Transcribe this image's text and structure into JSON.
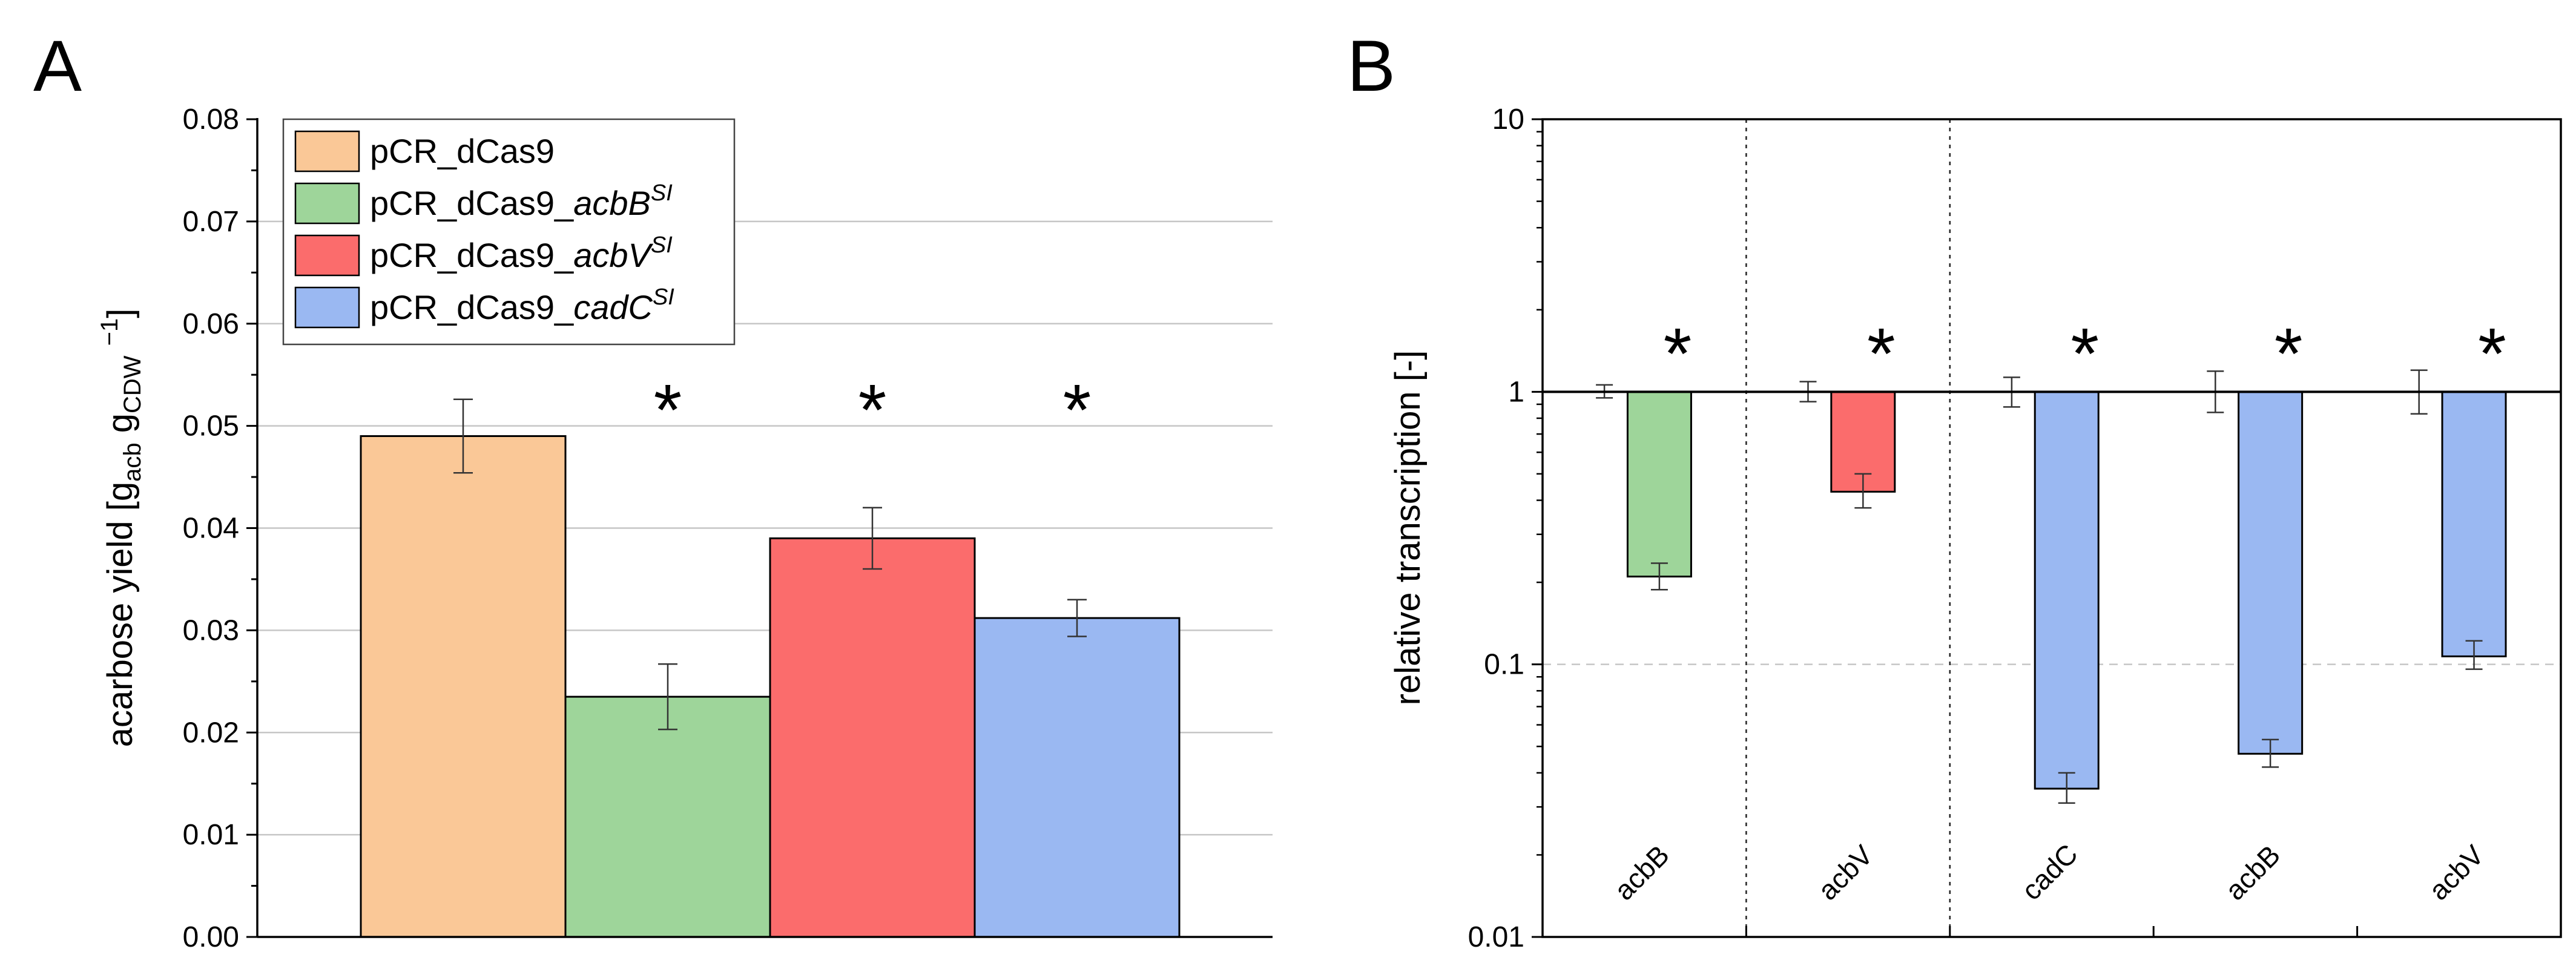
{
  "chart_data": [
    {
      "panel": "A",
      "type": "bar",
      "ylabel_parts": [
        "acarbose yield [g",
        "acb",
        " g",
        "CDW",
        " ",
        "−1",
        "]"
      ],
      "ylim": [
        0,
        0.08
      ],
      "yticks": [
        "0.00",
        "0.01",
        "0.02",
        "0.03",
        "0.04",
        "0.05",
        "0.06",
        "0.07",
        "0.08"
      ],
      "grid": "horizontal",
      "legend_position": "top-left",
      "series": [
        {
          "name_base": "pCR_dCas9",
          "name_italic": "",
          "name_sup": "",
          "value": 0.049,
          "error": 0.0036,
          "color": "#FAC897",
          "significant": false
        },
        {
          "name_base": "pCR_dCas9_",
          "name_italic": "acbB",
          "name_sup": "SI",
          "value": 0.0235,
          "error": 0.0032,
          "color": "#9ED59A",
          "significant": true
        },
        {
          "name_base": "pCR_dCas9_",
          "name_italic": "acbV",
          "name_sup": "SI",
          "value": 0.039,
          "error": 0.003,
          "color": "#FB6C6C",
          "significant": true
        },
        {
          "name_base": "pCR_dCas9_",
          "name_italic": "cadC",
          "name_sup": "SI",
          "value": 0.0312,
          "error": 0.0018,
          "color": "#9AB8F2",
          "significant": true
        }
      ],
      "significance_marker": "*"
    },
    {
      "panel": "B",
      "type": "bar",
      "scale": "log",
      "ylabel": "relative transcription [-]",
      "ylim": [
        0.01,
        10
      ],
      "yticks": [
        "0.01",
        "0.1",
        "1",
        "10"
      ],
      "categories": [
        "acbB",
        "acbV",
        "cadC",
        "acbB",
        "acbV"
      ],
      "control": [
        {
          "value": 1.0,
          "err_low": 0.95,
          "err_high": 1.06
        },
        {
          "value": 1.0,
          "err_low": 0.92,
          "err_high": 1.09
        },
        {
          "value": 1.0,
          "err_low": 0.88,
          "err_high": 1.13
        },
        {
          "value": 1.0,
          "err_low": 0.84,
          "err_high": 1.19
        },
        {
          "value": 1.0,
          "err_low": 0.83,
          "err_high": 1.2
        }
      ],
      "knockdown": [
        {
          "value": 0.21,
          "err_low": 0.188,
          "err_high": 0.235,
          "color": "#9ED59A"
        },
        {
          "value": 0.43,
          "err_low": 0.375,
          "err_high": 0.5,
          "color": "#FB6C6C"
        },
        {
          "value": 0.035,
          "err_low": 0.031,
          "err_high": 0.04,
          "color": "#9AB8F2"
        },
        {
          "value": 0.047,
          "err_low": 0.042,
          "err_high": 0.053,
          "color": "#9AB8F2"
        },
        {
          "value": 0.107,
          "err_low": 0.096,
          "err_high": 0.122,
          "color": "#9AB8F2"
        }
      ],
      "group_separators_after": [
        0,
        1
      ],
      "reference_line": 1,
      "significance_marker": "*"
    }
  ]
}
